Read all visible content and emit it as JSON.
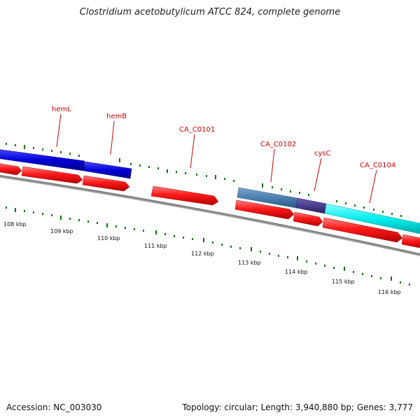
{
  "title": "Clostridium acetobutylicum ATCC 824, complete genome",
  "footer": {
    "accession": "Accession: NC_003030",
    "summary": "Topology: circular; Length: 3,940,880 bp; Genes: 3,777"
  },
  "scale_labels": [
    "108 kbp",
    "109 kbp",
    "110 kbp",
    "111 kbp",
    "112 kbp",
    "113 kbp",
    "114 kbp",
    "115 kbp",
    "116 kbp"
  ],
  "gene_labels": [
    "hemL",
    "hemB",
    "CA_C0101",
    "CA_C0102",
    "cysC",
    "CA_C0104"
  ],
  "colors": {
    "backbone": "#888888",
    "tick": "#007700",
    "label": "#cc0000",
    "cds": "#ff0000",
    "gene_blue": "#0000cc",
    "gene_steel": "#4a7fb0",
    "gene_purple": "#4a3e8c",
    "gene_cyan": "#00e8e8"
  }
}
